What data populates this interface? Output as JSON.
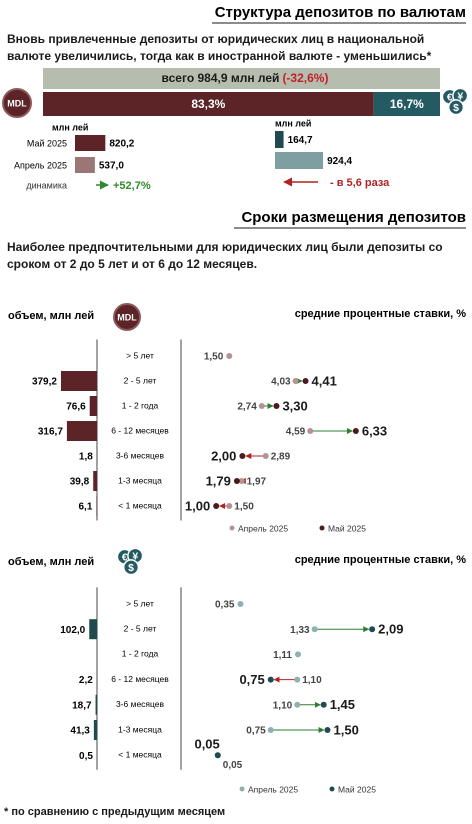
{
  "header": {
    "title": "Структура депозитов по валютам",
    "text": "Вновь привлеченные депозиты от юридических лиц в национальной валюте увеличились, тогда как в иностранной валюте - уменьшились*"
  },
  "total": {
    "label": "всего 984,9 млн лей",
    "change": "(-32,6%)"
  },
  "icons": {
    "mdl": "MDL",
    "fx": [
      "€",
      "¥",
      "$"
    ]
  },
  "terms": {
    "title": "Сроки размещения депозитов",
    "text": "Наиболее предпочтительными для юридических лиц были депозиты со сроком от 2 до 5 лет и от 6 до 12 месяцев."
  },
  "footnote": "* по сравнению с предыдущим месяцем",
  "chart_data": [
    {
      "type": "stacked-bar",
      "xlim": [
        0,
        100
      ],
      "series": [
        {
          "color": "#5c2427",
          "values": [
            83.3
          ],
          "value_labels": [
            "83,3%"
          ]
        },
        {
          "color": "#245a62",
          "values": [
            16.7
          ],
          "value_labels": [
            "16,7%"
          ]
        }
      ]
    },
    {
      "type": "hbar",
      "unit_label": "млн лей",
      "categories": [
        "Май 2025",
        "Апрель 2025"
      ],
      "values": [
        820.2,
        537.0
      ],
      "value_labels": [
        "820,2",
        "537,0"
      ],
      "colors": [
        "#5c2427",
        "#9b7676"
      ],
      "xlim": [
        0,
        1000
      ],
      "change_label": "динамика",
      "change": "+52,7%",
      "change_color": "#2e8b2e"
    },
    {
      "type": "hbar",
      "unit_label": "млн лей",
      "values": [
        164.7,
        924.4
      ],
      "value_labels": [
        "164,7",
        "924,4"
      ],
      "colors": [
        "#1f4a50",
        "#7e9ea2"
      ],
      "xlim": [
        0,
        1000
      ],
      "change": "- в 5,6 раза",
      "change_color": "#b22222"
    },
    {
      "type": "dot-plot",
      "volume_label": "объем, млн лей",
      "rate_label": "средние процентные ставки, %",
      "categories": [
        "> 5 лет",
        "2 - 5 лет",
        "1 - 2 года",
        "6 - 12 месяцев",
        "3-6 месяцев",
        "1-3 месяца",
        "< 1 месяца"
      ],
      "volumes": {
        "color": "#5c2427",
        "xlim": [
          0,
          400
        ],
        "values": [
          null,
          379.2,
          76.6,
          316.7,
          1.8,
          39.8,
          6.1
        ],
        "value_labels": [
          null,
          "379,2",
          "76,6",
          "316,7",
          "1,8",
          "39,8",
          "6,1"
        ]
      },
      "xlim": [
        0,
        10
      ],
      "series": [
        {
          "name": "Апрель 2025",
          "color": "#b39393",
          "values": [
            1.5,
            4.03,
            2.74,
            4.59,
            2.89,
            1.97,
            1.5
          ],
          "value_labels": [
            "1,50",
            "4,03",
            "2,74",
            "4,59",
            "2,89",
            "1,97",
            "1,50"
          ]
        },
        {
          "name": "Май 2025",
          "color": "#4a1a1c",
          "values": [
            null,
            4.41,
            3.3,
            6.33,
            2.0,
            1.79,
            1.0
          ],
          "value_labels": [
            null,
            "4,41",
            "3,30",
            "6,33",
            "2,00",
            "1,79",
            "1,00"
          ]
        }
      ],
      "up_color": "#2e7d32",
      "down_color": "#b22222"
    },
    {
      "type": "dot-plot",
      "volume_label": "объем, млн лей",
      "rate_label": "средние процентные ставки, %",
      "categories": [
        "> 5 лет",
        "2 - 5 лет",
        "1 - 2 года",
        "6 - 12 месяцев",
        "3-6 месяцев",
        "1-3 месяца",
        "< 1 месяца"
      ],
      "volumes": {
        "color": "#1f4a50",
        "xlim": [
          0,
          500
        ],
        "values": [
          null,
          102.0,
          null,
          2.2,
          18.7,
          41.3,
          0.5
        ],
        "value_labels": [
          null,
          "102,0",
          null,
          "2,2",
          "18,7",
          "41,3",
          "0,5"
        ]
      },
      "xlim": [
        0,
        3
      ],
      "series": [
        {
          "name": "Апрель 2025",
          "color": "#8fb0b0",
          "values": [
            0.35,
            1.33,
            1.11,
            1.1,
            1.1,
            0.75,
            0.05
          ],
          "value_labels": [
            "0,35",
            "1,33",
            "1,11",
            "1,10",
            "1,10",
            "0,75",
            "0,05"
          ]
        },
        {
          "name": "Май 2025",
          "color": "#1f4a50",
          "values": [
            null,
            2.09,
            null,
            0.75,
            1.45,
            1.5,
            0.05
          ],
          "value_labels": [
            null,
            "2,09",
            null,
            "0,75",
            "1,45",
            "1,50",
            "0,05"
          ]
        }
      ],
      "up_color": "#2e7d32",
      "down_color": "#b22222"
    }
  ]
}
